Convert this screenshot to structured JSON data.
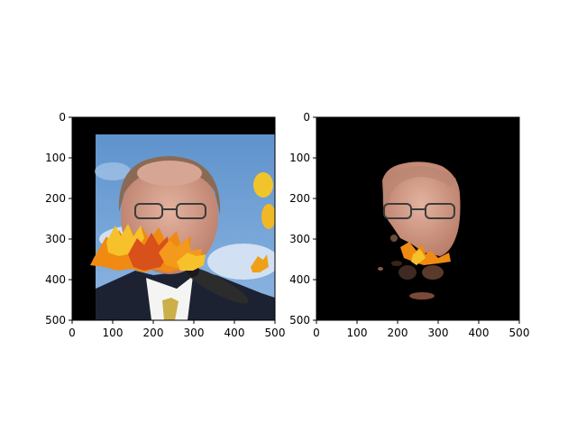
{
  "figure": {
    "background": "#ffffff"
  },
  "chart_data": [
    {
      "type": "image",
      "content": "photo of a man in suit and tie with glasses, blue sky background, orange autumn maple leaves overlaid across lower face, microphone at bottom right",
      "extent": {
        "x": [
          0,
          500
        ],
        "y": [
          0,
          500
        ]
      },
      "y_inverted": true,
      "xticks": [
        "0",
        "100",
        "200",
        "300",
        "400",
        "500"
      ],
      "yticks": [
        "0",
        "100",
        "200",
        "300",
        "400",
        "500"
      ],
      "title": "",
      "xlabel": "",
      "ylabel": ""
    },
    {
      "type": "image",
      "content": "segmentation mask result: only the face region of the man visible on a black background, with fragments of the orange leaves",
      "extent": {
        "x": [
          0,
          500
        ],
        "y": [
          0,
          500
        ]
      },
      "y_inverted": true,
      "xticks": [
        "0",
        "100",
        "200",
        "300",
        "400",
        "500"
      ],
      "yticks": [
        "0",
        "100",
        "200",
        "300",
        "400",
        "500"
      ],
      "title": "",
      "xlabel": "",
      "ylabel": ""
    }
  ],
  "colors": {
    "sky": "#6a9bd0",
    "sky_light": "#b9d3ee",
    "skin": "#d9a48e",
    "suit": "#1d2233",
    "leaf_orange": "#f08a12",
    "leaf_yellow": "#f6c12a",
    "leaf_red": "#d8501a",
    "black": "#000000"
  }
}
